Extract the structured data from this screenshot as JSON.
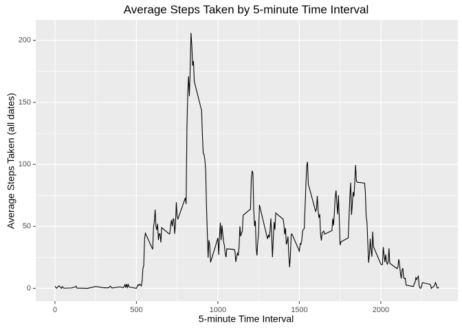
{
  "chart_data": {
    "type": "line",
    "title": "Average Steps Taken by 5-minute Time Interval",
    "x_label": "5-minute Time Interval",
    "y_label": "Average Steps Taken (all dates)",
    "color": "#000000",
    "grid": true,
    "xlim": [
      -117.75,
      2472.75
    ],
    "ylim": [
      -10.3,
      216.5
    ],
    "xticks": [
      0,
      500,
      1000,
      1500,
      2000
    ],
    "x_minor_ticks": [
      250,
      750,
      1250,
      1750,
      2250
    ],
    "yticks": [
      0,
      50,
      100,
      150,
      200
    ],
    "y_minor_ticks": [
      25,
      75,
      125,
      175
    ],
    "x": [
      0,
      10,
      25,
      40,
      45,
      55,
      100,
      125,
      130,
      135,
      200,
      250,
      300,
      330,
      340,
      350,
      400,
      420,
      430,
      435,
      440,
      445,
      450,
      455,
      500,
      505,
      510,
      515,
      520,
      525,
      530,
      535,
      540,
      545,
      550,
      555,
      600,
      605,
      610,
      615,
      620,
      625,
      630,
      635,
      640,
      645,
      650,
      655,
      700,
      705,
      710,
      715,
      720,
      725,
      730,
      735,
      740,
      745,
      750,
      755,
      800,
      805,
      810,
      815,
      820,
      825,
      830,
      835,
      840,
      845,
      850,
      855,
      900,
      905,
      910,
      915,
      920,
      925,
      930,
      935,
      940,
      945,
      950,
      955,
      1000,
      1005,
      1010,
      1015,
      1020,
      1025,
      1030,
      1035,
      1040,
      1045,
      1050,
      1055,
      1100,
      1105,
      1110,
      1115,
      1120,
      1125,
      1130,
      1135,
      1140,
      1145,
      1150,
      1155,
      1200,
      1205,
      1210,
      1215,
      1220,
      1225,
      1230,
      1235,
      1240,
      1245,
      1250,
      1255,
      1300,
      1305,
      1310,
      1315,
      1320,
      1325,
      1330,
      1335,
      1340,
      1345,
      1350,
      1355,
      1400,
      1405,
      1410,
      1415,
      1420,
      1425,
      1430,
      1435,
      1440,
      1445,
      1450,
      1455,
      1500,
      1505,
      1510,
      1515,
      1520,
      1525,
      1530,
      1535,
      1540,
      1545,
      1550,
      1555,
      1600,
      1605,
      1610,
      1615,
      1620,
      1625,
      1630,
      1635,
      1640,
      1645,
      1650,
      1655,
      1700,
      1705,
      1710,
      1715,
      1720,
      1725,
      1730,
      1735,
      1740,
      1745,
      1750,
      1755,
      1800,
      1805,
      1810,
      1815,
      1820,
      1825,
      1830,
      1835,
      1840,
      1845,
      1850,
      1855,
      1900,
      1905,
      1910,
      1915,
      1920,
      1925,
      1930,
      1935,
      1940,
      1945,
      1950,
      1955,
      2000,
      2005,
      2010,
      2015,
      2020,
      2025,
      2030,
      2035,
      2040,
      2045,
      2050,
      2055,
      2100,
      2105,
      2110,
      2115,
      2120,
      2125,
      2130,
      2135,
      2140,
      2145,
      2150,
      2155,
      2200,
      2205,
      2210,
      2215,
      2220,
      2225,
      2230,
      2235,
      2240,
      2245,
      2250,
      2255,
      2300,
      2305,
      2310,
      2315,
      2320,
      2325,
      2330,
      2335,
      2340,
      2345,
      2350,
      2355
    ],
    "values": [
      1.7,
      0.1,
      2.1,
      0,
      1.5,
      0.1,
      0.3,
      1.1,
      1.8,
      0.2,
      0,
      1.5,
      0.5,
      0.5,
      1.8,
      0.3,
      1.2,
      0.5,
      3,
      0.5,
      3.5,
      0.8,
      3.1,
      1.1,
      0,
      1.5,
      3,
      2.2,
      3.3,
      3,
      2,
      6,
      16,
      18.3,
      39.5,
      44.5,
      31.5,
      49.3,
      53.8,
      63.5,
      50,
      47,
      52,
      39,
      44,
      44,
      37,
      49,
      44,
      44,
      51,
      55,
      50,
      56,
      55.7,
      44,
      52,
      69.5,
      58,
      56,
      73,
      68,
      129,
      157,
      171,
      155,
      177,
      206,
      195.9,
      179.6,
      183.4,
      167,
      143.5,
      124,
      109,
      108,
      103.7,
      95.9,
      66.2,
      45.2,
      24.8,
      38.8,
      35,
      21,
      40.6,
      27,
      42.4,
      53,
      38.9,
      50.8,
      44.3,
      37.4,
      34.7,
      28.3,
      25.1,
      31.9,
      31.4,
      29.7,
      21.3,
      25.5,
      28.4,
      26.5,
      33.4,
      50,
      42,
      44.6,
      46,
      59,
      63.9,
      87.6,
      94.8,
      92.8,
      63.4,
      50.2,
      54.5,
      32.4,
      26.5,
      37.7,
      45,
      67.3,
      42.3,
      39.9,
      43.3,
      41,
      46.2,
      56.4,
      42.8,
      25.1,
      40,
      53.5,
      47.3,
      60.8,
      55.8,
      52,
      43.6,
      48.7,
      35.5,
      37.5,
      41.8,
      27.5,
      17.1,
      26.1,
      43.6,
      43.8,
      30,
      36.1,
      35.5,
      38.8,
      46,
      47.8,
      48.1,
      65.3,
      82.9,
      98.7,
      102.1,
      84,
      62.1,
      64.1,
      74.5,
      63.2,
      56.9,
      59.8,
      43.9,
      38.6,
      44.7,
      45.5,
      46.2,
      43.7,
      46.6,
      56.3,
      50.7,
      61.2,
      73.4,
      79,
      68.9,
      59.7,
      75.1,
      56.5,
      34.8,
      37.5,
      40.7,
      58,
      74.7,
      85.3,
      59.3,
      67.8,
      77.7,
      74.2,
      85.3,
      99.5,
      86.6,
      85.6,
      84.9,
      77.8,
      58,
      53.4,
      36.3,
      20.7,
      27.4,
      40,
      30.2,
      25.5,
      45.7,
      33.5,
      19.6,
      19,
      19.3,
      33.3,
      26.8,
      21.2,
      27.3,
      21.3,
      19.5,
      21.3,
      32.3,
      20.2,
      15.9,
      17.2,
      23.5,
      19.2,
      12.5,
      8,
      14.7,
      16.3,
      8.7,
      7.8,
      8.1,
      2.6,
      1.5,
      3.7,
      4.8,
      8.5,
      7.1,
      8.7,
      9.8,
      2.2,
      0.3,
      0.1,
      1.6,
      4.6,
      3.3,
      2.8,
      0,
      0.8,
      1,
      1.6,
      2.6,
      4.7,
      3.3,
      0.6,
      0.2,
      1.1
    ]
  }
}
